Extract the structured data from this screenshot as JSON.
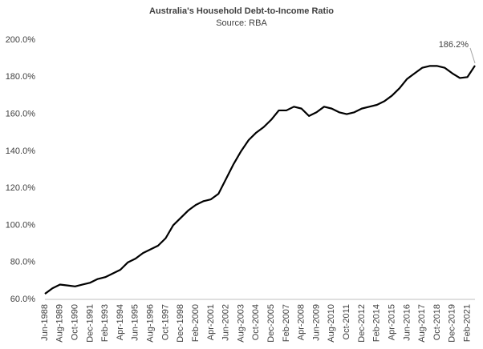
{
  "chart_data": {
    "type": "line",
    "title": "Australia's Household Debt-to-Income Ratio",
    "subtitle": "Source: RBA",
    "categories": [
      "Jun-1988",
      null,
      "Aug-1989",
      null,
      "Oct-1990",
      null,
      "Dec-1991",
      null,
      "Feb-1993",
      null,
      "Apr-1994",
      null,
      "Jun-1995",
      null,
      "Aug-1996",
      null,
      "Oct-1997",
      null,
      "Dec-1998",
      null,
      "Feb-2000",
      null,
      "Apr-2001",
      null,
      "Jun-2002",
      null,
      "Aug-2003",
      null,
      "Oct-2004",
      null,
      "Dec-2005",
      null,
      "Feb-2007",
      null,
      "Apr-2008",
      null,
      "Jun-2009",
      null,
      "Aug-2010",
      null,
      "Oct-2011",
      null,
      "Dec-2012",
      null,
      "Feb-2014",
      null,
      "Apr-2015",
      null,
      "Jun-2016",
      null,
      "Aug-2017",
      null,
      "Oct-2018",
      null,
      "Dec-2019",
      null,
      "Feb-2021",
      null
    ],
    "series": [
      {
        "name": "Household debt-to-income ratio",
        "color": "#000000",
        "values": [
          63,
          66,
          68,
          67.5,
          67,
          68,
          69,
          71,
          72,
          74,
          76,
          80,
          82,
          85,
          87,
          89,
          93,
          100,
          104,
          108,
          111,
          113,
          114,
          117,
          125,
          133,
          140,
          146,
          150,
          153,
          157,
          162,
          162,
          164,
          163,
          159,
          161,
          164,
          163,
          161,
          160,
          161,
          163,
          164,
          165,
          167,
          170,
          174,
          179,
          182,
          185,
          186,
          186,
          185,
          182,
          179.5,
          180,
          186.2
        ]
      }
    ],
    "annotation": "186.2%",
    "ylim": [
      60,
      200
    ],
    "yticks": [
      {
        "value": 60,
        "label": "60.0%"
      },
      {
        "value": 80,
        "label": "80.0%"
      },
      {
        "value": 100,
        "label": "100.0%"
      },
      {
        "value": 120,
        "label": "120.0%"
      },
      {
        "value": 140,
        "label": "140.0%"
      },
      {
        "value": 160,
        "label": "160.0%"
      },
      {
        "value": 180,
        "label": "180.0%"
      },
      {
        "value": 200,
        "label": "200.0%"
      }
    ],
    "grid": false
  }
}
